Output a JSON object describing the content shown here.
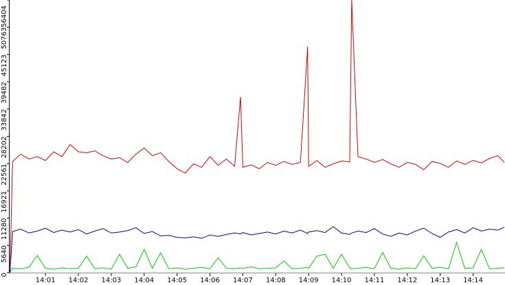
{
  "chart_data": {
    "type": "line",
    "x": [
      -0.08,
      0,
      0.25,
      0.5,
      0.75,
      1,
      1.25,
      1.5,
      1.75,
      2,
      2.25,
      2.5,
      2.75,
      3,
      3.25,
      3.5,
      3.75,
      4,
      4.25,
      4.5,
      4.75,
      5,
      5.25,
      5.5,
      5.75,
      6,
      6.25,
      6.5,
      6.75,
      6.93,
      7,
      7.25,
      7.5,
      7.75,
      8,
      8.25,
      8.5,
      8.75,
      8.97,
      9,
      9.25,
      9.5,
      9.75,
      10,
      10.25,
      10.31,
      10.5,
      10.75,
      11,
      11.25,
      11.5,
      11.75,
      12,
      12.25,
      12.5,
      12.75,
      13,
      13.25,
      13.5,
      13.75,
      14,
      14.25,
      14.5,
      14.75,
      14.95
    ],
    "series": [
      {
        "color": "#d40000",
        "values": [
          0,
          23000,
          24500,
          23500,
          24000,
          23200,
          25000,
          24000,
          26500,
          25000,
          24800,
          25200,
          24200,
          23500,
          23800,
          22800,
          24500,
          25800,
          24200,
          24800,
          23000,
          21500,
          20600,
          22500,
          21800,
          24000,
          22200,
          23500,
          22000,
          36360,
          21800,
          22300,
          21500,
          22800,
          22200,
          23000,
          22400,
          22800,
          46730,
          22000,
          23200,
          21800,
          22500,
          23100,
          22900,
          56404,
          24000,
          23500,
          22800,
          23400,
          22500,
          21800,
          22800,
          22400,
          21300,
          23000,
          22600,
          21800,
          23100,
          22400,
          23200,
          22700,
          23600,
          24200,
          22800
        ]
      },
      {
        "color": "#000099",
        "values": [
          0,
          8500,
          9000,
          8200,
          8600,
          9200,
          8300,
          8800,
          8400,
          8900,
          8000,
          8600,
          9100,
          8200,
          8400,
          8700,
          9300,
          8100,
          8500,
          7600,
          7700,
          7300,
          7200,
          7400,
          7100,
          7800,
          7500,
          7900,
          8200,
          8000,
          8300,
          7800,
          8100,
          8400,
          8000,
          8600,
          8200,
          8800,
          8100,
          8400,
          8700,
          8300,
          9500,
          8200,
          7900,
          8200,
          8600,
          8300,
          9100,
          8000,
          7500,
          8200,
          7800,
          8600,
          9200,
          8100,
          7300,
          8400,
          8900,
          8200,
          9300,
          8600,
          9000,
          8800,
          9400
        ]
      },
      {
        "color": "#00cc00",
        "values": [
          0,
          900,
          800,
          1100,
          3550,
          900,
          700,
          1000,
          800,
          900,
          3400,
          800,
          1000,
          700,
          3800,
          900,
          1200,
          4830,
          900,
          4100,
          800,
          1000,
          700,
          900,
          1100,
          800,
          3100,
          900,
          800,
          1000,
          900,
          1200,
          800,
          900,
          1000,
          2400,
          800,
          900,
          1100,
          900,
          3400,
          3800,
          900,
          3800,
          1000,
          800,
          900,
          1100,
          800,
          4200,
          900,
          700,
          1000,
          800,
          3500,
          900,
          1100,
          800,
          6250,
          900,
          1000,
          4800,
          800,
          900,
          1000
        ]
      }
    ],
    "xlim": [
      -0.09,
      14.97
    ],
    "xticks": [
      {
        "value": 1,
        "label": "14:01"
      },
      {
        "value": 2,
        "label": "14:02"
      },
      {
        "value": 3,
        "label": "14:03"
      },
      {
        "value": 4,
        "label": "14:04"
      },
      {
        "value": 5,
        "label": "14:05"
      },
      {
        "value": 6,
        "label": "14:06"
      },
      {
        "value": 7,
        "label": "14:07"
      },
      {
        "value": 8,
        "label": "14:08"
      },
      {
        "value": 9,
        "label": "14:09"
      },
      {
        "value": 10,
        "label": "14:10"
      },
      {
        "value": 11,
        "label": "14:11"
      },
      {
        "value": 12,
        "label": "14:12"
      },
      {
        "value": 13,
        "label": "14:13"
      },
      {
        "value": 14,
        "label": "14:14"
      }
    ],
    "ylim": [
      0,
      56404
    ],
    "yticks": [
      0,
      5640,
      11280,
      16921,
      22561,
      28202,
      33842,
      39482,
      45123,
      50763,
      56404
    ]
  }
}
